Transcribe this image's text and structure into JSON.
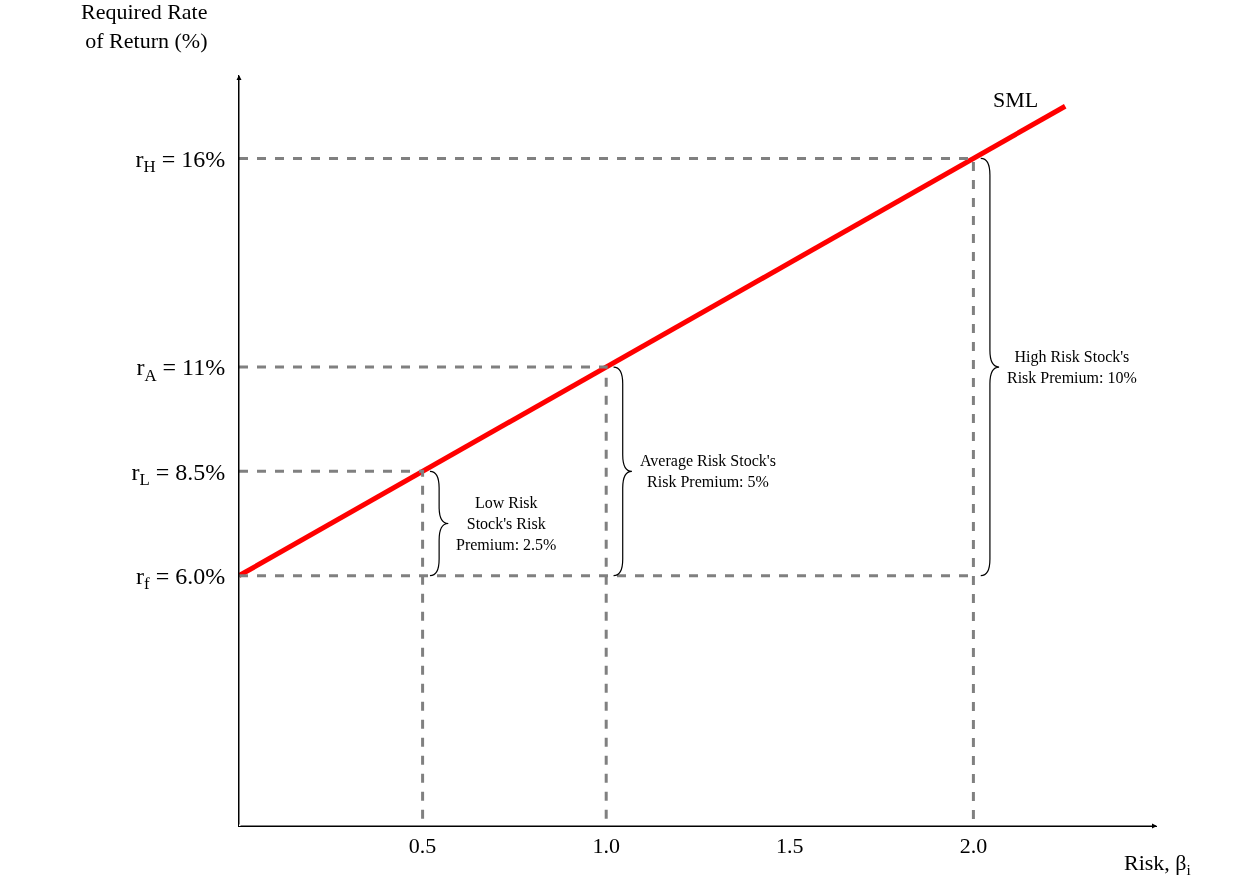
{
  "chart_data": {
    "type": "line",
    "xlabel": "Risk, β$_{i}$",
    "ylabel": "Required Rate\nof Return (%)",
    "xlim": [
      0,
      2.5
    ],
    "ylim": [
      0,
      18
    ],
    "xticks": [
      0.5,
      {
        "value": 1,
        "label": "1.0"
      },
      1.5,
      {
        "value": 2,
        "label": "2.0"
      }
    ],
    "yticks": [
      {
        "value": 6,
        "label": "r$_{f}$ = 6.0%"
      },
      {
        "value": 8.5,
        "label": "r$_{L}$ = 8.5%"
      },
      {
        "value": 11,
        "label": "r$_{A}$ = 11%"
      },
      {
        "value": 16,
        "label": "r$_{H}$ = 16%"
      }
    ],
    "series": [
      {
        "name": "SML",
        "color": "#ff0000",
        "x": [
          0,
          2.25
        ],
        "values": [
          6,
          17.25
        ],
        "line_style": "solid"
      },
      {
        "color": "#808080",
        "x": [
          0,
          2.0
        ],
        "values": [
          6,
          6
        ],
        "line_style": "dashed"
      },
      {
        "color": "#808080",
        "x": [
          0,
          0.5,
          0.5
        ],
        "values": [
          8.5,
          8.5,
          0
        ],
        "line_style": "dashed"
      },
      {
        "color": "#808080",
        "x": [
          0,
          1.0,
          1.0
        ],
        "values": [
          11,
          11,
          0
        ],
        "line_style": "dashed"
      },
      {
        "color": "#808080",
        "x": [
          0,
          2.0,
          2.0
        ],
        "values": [
          16,
          16,
          0
        ],
        "line_style": "dashed"
      }
    ],
    "annotations": [
      "Low Risk\nStock's Risk\nPremium: 2.5%",
      "Average Risk Stock's\nRisk Premium: 5%",
      "High Risk Stock's\nRisk Premium: 10%"
    ],
    "legend": false,
    "marker": "none"
  }
}
